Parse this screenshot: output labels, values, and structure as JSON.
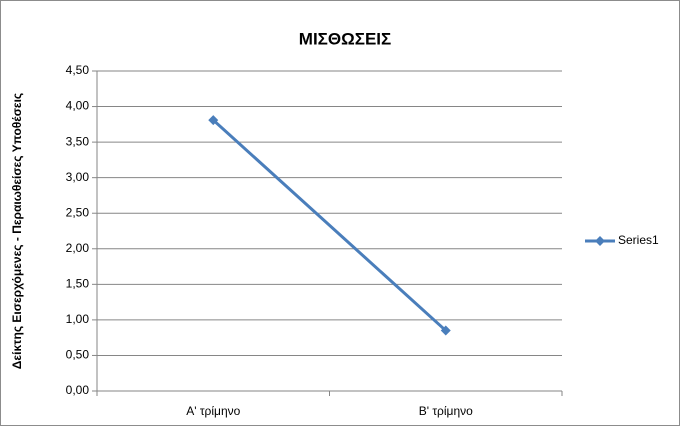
{
  "chart_data": {
    "type": "line",
    "title": "ΜΙΣΘΩΣΕΙΣ",
    "y_label": "Δείκτης Εισερχόμενες - Περαιωθείσες Υποθέσεις",
    "categories": [
      "Α' τρίμηνο",
      "Β' τρίμηνο"
    ],
    "series": [
      {
        "name": "Series1",
        "color": "#4a7ebb",
        "values": [
          3.81,
          0.85
        ]
      }
    ],
    "ylim": [
      0,
      4.5
    ],
    "yticks": [
      {
        "value": 0,
        "label": "0,00"
      },
      {
        "value": 0.5,
        "label": "0,50"
      },
      {
        "value": 1,
        "label": "1,00"
      },
      {
        "value": 1.5,
        "label": "1,50"
      },
      {
        "value": 2,
        "label": "2,00"
      },
      {
        "value": 2.5,
        "label": "2,50"
      },
      {
        "value": 3,
        "label": "3,00"
      },
      {
        "value": 3.5,
        "label": "3,50"
      },
      {
        "value": 4,
        "label": "4,00"
      },
      {
        "value": 4.5,
        "label": "4,50"
      }
    ],
    "grid": true,
    "legend": "right"
  }
}
